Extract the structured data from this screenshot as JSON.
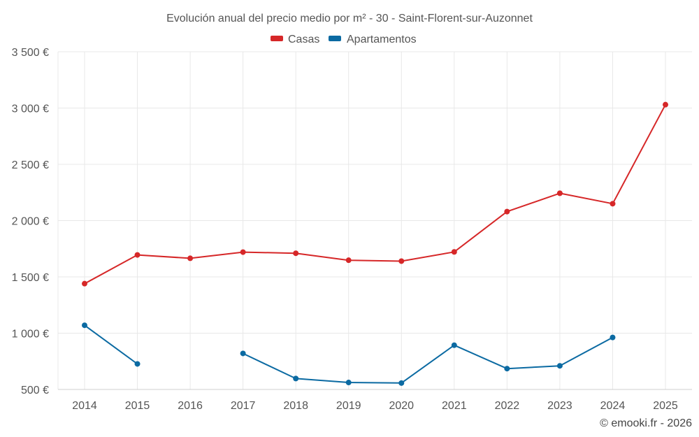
{
  "chart_data": {
    "type": "line",
    "title": "Evolución anual del precio medio por m² - 30 - Saint-Florent-sur-Auzonnet",
    "categories": [
      "2014",
      "2015",
      "2016",
      "2017",
      "2018",
      "2019",
      "2020",
      "2021",
      "2022",
      "2023",
      "2024",
      "2025"
    ],
    "series": [
      {
        "name": "Casas",
        "color": "#d62728",
        "values": [
          1440,
          1695,
          1665,
          1720,
          1710,
          1648,
          1640,
          1722,
          2080,
          2243,
          2150,
          3030
        ]
      },
      {
        "name": "Apartamentos",
        "color": "#0b6aa2",
        "values": [
          1070,
          727,
          null,
          820,
          597,
          562,
          557,
          893,
          685,
          710,
          962,
          null
        ]
      }
    ],
    "ylim": [
      500,
      3500
    ],
    "yticks": [
      500,
      1000,
      1500,
      2000,
      2500,
      3000,
      3500
    ],
    "ytick_labels": [
      "500 €",
      "1 000 €",
      "1 500 €",
      "2 000 €",
      "2 500 €",
      "3 000 €",
      "3 500 €"
    ],
    "legend_position": "top-center",
    "grid": true,
    "xlabel": "",
    "ylabel": ""
  },
  "credit": "© emooki.fr - 2026"
}
